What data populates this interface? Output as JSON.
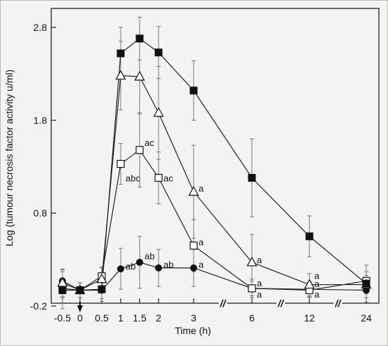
{
  "chart_data": {
    "type": "line",
    "xlabel": "Time (h)",
    "ylabel": "Log (tumour necrosis factor activity u/ml)",
    "x": [
      -0.5,
      0,
      0.5,
      1,
      1.5,
      2,
      3,
      6,
      12,
      24
    ],
    "x_tick_labels": [
      "-0.5",
      "0",
      "0.5",
      "1",
      "1.5",
      "2",
      "3",
      "6",
      "12",
      "24"
    ],
    "y_ticks": [
      -0.2,
      0.8,
      1.8,
      2.8
    ],
    "y_tick_labels": [
      "-0.2",
      "0.8",
      "1.8",
      "2.8"
    ],
    "ylim": [
      -0.2,
      2.8
    ],
    "axis_break_symbol": "//",
    "arrow_at_x": 0,
    "series": [
      {
        "marker": "filled-square",
        "values": [
          -0.03,
          -0.03,
          -0.02,
          2.52,
          2.68,
          2.53,
          2.12,
          1.18,
          0.55,
          0.04
        ],
        "errors": [
          0.2,
          0.08,
          0.1,
          0.28,
          0.23,
          0.28,
          0.32,
          0.42,
          0.22,
          0.2
        ]
      },
      {
        "marker": "open-triangle",
        "values": [
          0.05,
          -0.03,
          0.09,
          2.28,
          2.27,
          1.88,
          1.03,
          0.27,
          0.03,
          0.03
        ],
        "errors": [
          0.15,
          0.08,
          0.12,
          0.37,
          0.4,
          0.5,
          0.5,
          0.3,
          0.12,
          0.1
        ]
      },
      {
        "marker": "open-square",
        "values": [
          -0.01,
          -0.03,
          0.12,
          1.33,
          1.48,
          1.18,
          0.45,
          -0.01,
          -0.03,
          0.07
        ],
        "errors": [
          0.1,
          0.08,
          0.1,
          0.22,
          0.4,
          0.28,
          0.28,
          0.1,
          0.08,
          0.1
        ]
      },
      {
        "marker": "filled-circle",
        "values": [
          0.07,
          -0.03,
          -0.03,
          0.2,
          0.27,
          0.21,
          0.21,
          -0.01,
          -0.02,
          -0.03
        ],
        "errors": [
          0.12,
          0.08,
          0.12,
          0.22,
          0.28,
          0.2,
          0.2,
          0.08,
          0.08,
          0.08
        ]
      }
    ],
    "annotations": [
      {
        "text": "ab",
        "x": 1,
        "y": 0.23
      },
      {
        "text": "ab",
        "x": 1.5,
        "y": 0.34
      },
      {
        "text": "ab",
        "x": 2,
        "y": 0.25
      },
      {
        "text": "a",
        "x": 3,
        "y": 0.25
      },
      {
        "text": "abc",
        "x": 1,
        "y": 1.18
      },
      {
        "text": "ac",
        "x": 1.5,
        "y": 1.56
      },
      {
        "text": "ac",
        "x": 2,
        "y": 1.18
      },
      {
        "text": "a",
        "x": 3,
        "y": 1.07
      },
      {
        "text": "a",
        "x": 3,
        "y": 0.49
      },
      {
        "text": "a",
        "x": 6,
        "y": 0.3
      },
      {
        "text": "a",
        "x": 6,
        "y": 0.05
      },
      {
        "text": "a",
        "x": 6,
        "y": -0.07
      },
      {
        "text": "a",
        "x": 12,
        "y": 0.13
      },
      {
        "text": "a",
        "x": 12,
        "y": 0.04
      },
      {
        "text": "a",
        "x": 12,
        "y": -0.07
      }
    ]
  }
}
